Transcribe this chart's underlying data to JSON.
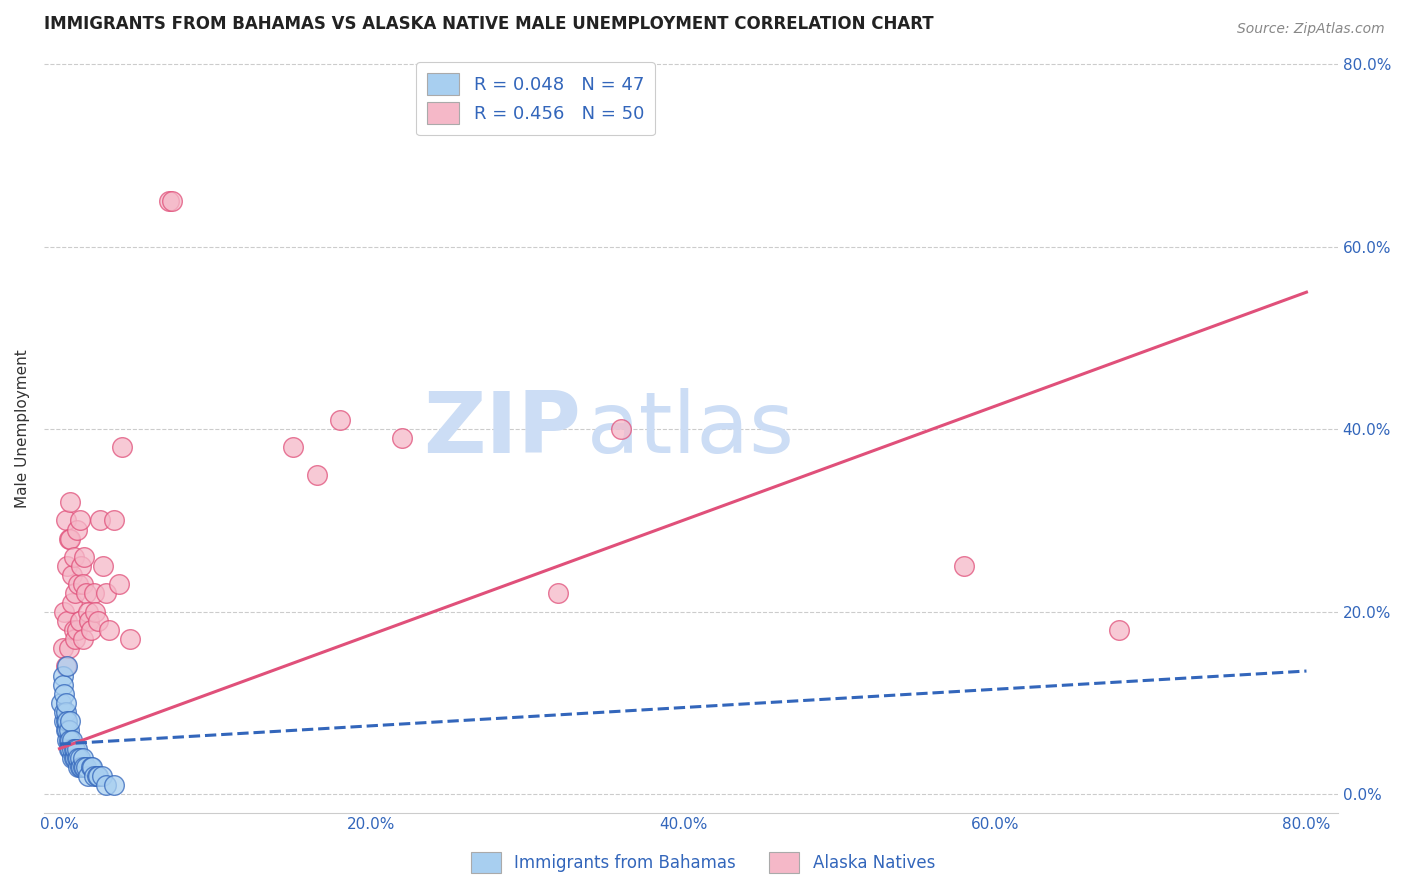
{
  "title": "IMMIGRANTS FROM BAHAMAS VS ALASKA NATIVE MALE UNEMPLOYMENT CORRELATION CHART",
  "source": "Source: ZipAtlas.com",
  "ylabel_left": "Male Unemployment",
  "x_tick_labels": [
    "0.0%",
    "20.0%",
    "40.0%",
    "60.0%",
    "80.0%"
  ],
  "x_tick_values": [
    0.0,
    0.2,
    0.4,
    0.6,
    0.8
  ],
  "y_tick_labels": [
    "0.0%",
    "20.0%",
    "40.0%",
    "60.0%",
    "80.0%"
  ],
  "y_tick_values": [
    0.0,
    0.2,
    0.4,
    0.6,
    0.8
  ],
  "xlim": [
    -0.01,
    0.82
  ],
  "ylim": [
    -0.02,
    0.82
  ],
  "legend_label_blue": "Immigrants from Bahamas",
  "legend_label_pink": "Alaska Natives",
  "R_blue": 0.048,
  "N_blue": 47,
  "R_pink": 0.456,
  "N_pink": 50,
  "blue_color": "#a8cff0",
  "blue_line_color": "#3366bb",
  "pink_color": "#f5b8c8",
  "pink_line_color": "#e0507a",
  "background_color": "#ffffff",
  "grid_color": "#cccccc",
  "title_fontsize": 12,
  "axis_label_fontsize": 11,
  "tick_fontsize": 11,
  "blue_scatter_x": [
    0.001,
    0.002,
    0.002,
    0.003,
    0.003,
    0.003,
    0.004,
    0.004,
    0.004,
    0.004,
    0.005,
    0.005,
    0.005,
    0.005,
    0.006,
    0.006,
    0.006,
    0.007,
    0.007,
    0.007,
    0.008,
    0.008,
    0.008,
    0.009,
    0.009,
    0.01,
    0.01,
    0.011,
    0.011,
    0.012,
    0.012,
    0.013,
    0.013,
    0.014,
    0.015,
    0.015,
    0.016,
    0.017,
    0.018,
    0.02,
    0.021,
    0.022,
    0.024,
    0.025,
    0.027,
    0.03,
    0.035
  ],
  "blue_scatter_y": [
    0.1,
    0.13,
    0.12,
    0.08,
    0.09,
    0.11,
    0.07,
    0.08,
    0.09,
    0.1,
    0.06,
    0.07,
    0.08,
    0.14,
    0.05,
    0.06,
    0.07,
    0.05,
    0.06,
    0.08,
    0.04,
    0.05,
    0.06,
    0.04,
    0.05,
    0.04,
    0.05,
    0.04,
    0.05,
    0.03,
    0.04,
    0.03,
    0.04,
    0.03,
    0.03,
    0.04,
    0.03,
    0.03,
    0.02,
    0.03,
    0.03,
    0.02,
    0.02,
    0.02,
    0.02,
    0.01,
    0.01
  ],
  "pink_scatter_x": [
    0.002,
    0.003,
    0.004,
    0.004,
    0.005,
    0.005,
    0.006,
    0.006,
    0.007,
    0.007,
    0.008,
    0.008,
    0.009,
    0.009,
    0.01,
    0.01,
    0.011,
    0.011,
    0.012,
    0.013,
    0.013,
    0.014,
    0.015,
    0.015,
    0.016,
    0.017,
    0.018,
    0.019,
    0.02,
    0.022,
    0.023,
    0.025,
    0.026,
    0.028,
    0.03,
    0.032,
    0.035,
    0.038,
    0.04,
    0.045,
    0.07,
    0.072,
    0.15,
    0.165,
    0.18,
    0.22,
    0.32,
    0.36,
    0.58,
    0.68
  ],
  "pink_scatter_y": [
    0.16,
    0.2,
    0.14,
    0.3,
    0.19,
    0.25,
    0.16,
    0.28,
    0.28,
    0.32,
    0.21,
    0.24,
    0.18,
    0.26,
    0.17,
    0.22,
    0.18,
    0.29,
    0.23,
    0.19,
    0.3,
    0.25,
    0.17,
    0.23,
    0.26,
    0.22,
    0.2,
    0.19,
    0.18,
    0.22,
    0.2,
    0.19,
    0.3,
    0.25,
    0.22,
    0.18,
    0.3,
    0.23,
    0.38,
    0.17,
    0.65,
    0.65,
    0.38,
    0.35,
    0.41,
    0.39,
    0.22,
    0.4,
    0.25,
    0.18
  ],
  "pink_line_x0": 0.0,
  "pink_line_y0": 0.05,
  "pink_line_x1": 0.8,
  "pink_line_y1": 0.55,
  "blue_line_x0": 0.0,
  "blue_line_y0": 0.055,
  "blue_line_x1": 0.8,
  "blue_line_y1": 0.135,
  "watermark_ZIP": "ZIP",
  "watermark_atlas": "atlas",
  "watermark_color": "#ccddf5"
}
